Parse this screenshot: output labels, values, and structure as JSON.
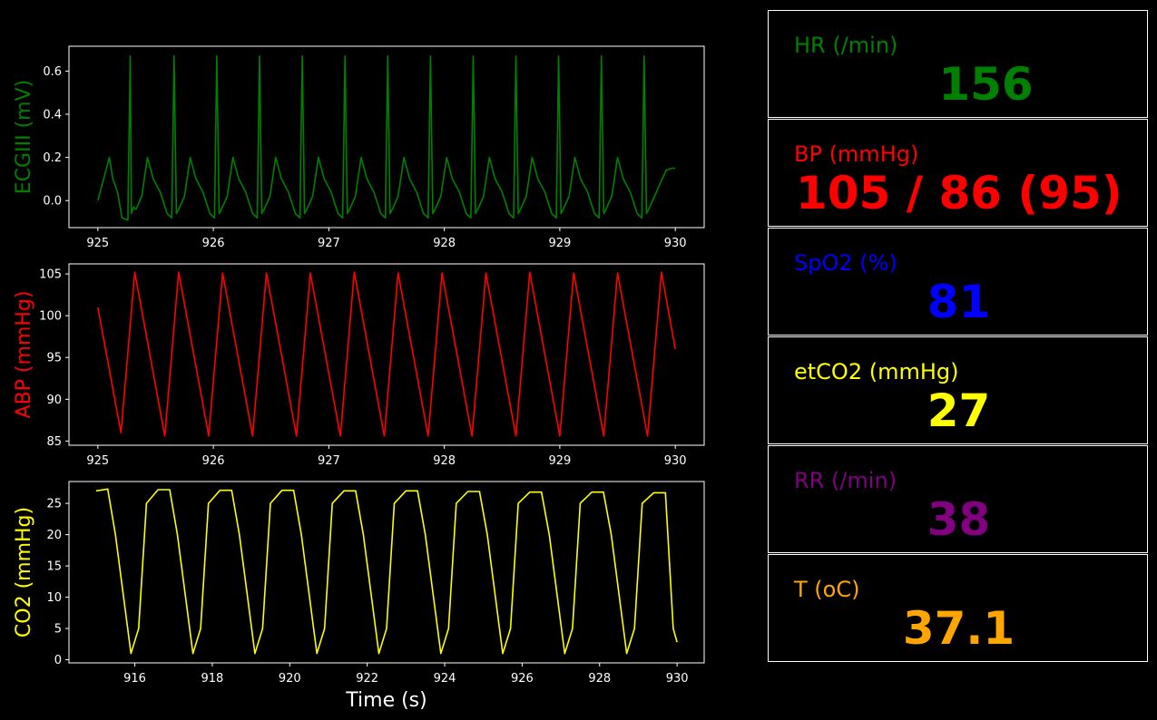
{
  "colors": {
    "background": "#000000",
    "ecg": "#008000",
    "abp": "#ff0000",
    "co2": "#ffff00",
    "spo2": "#0000ff",
    "rr": "#800080",
    "temp": "#ffa500",
    "axis": "#ffffff"
  },
  "vitals": {
    "hr": {
      "label": "HR (/min)",
      "value": "156"
    },
    "bp": {
      "label": "BP  (mmHg)",
      "value": "105 / 86 (95)"
    },
    "spo2": {
      "label": "SpO2 (%)",
      "value": "81"
    },
    "etco2": {
      "label": "etCO2 (mmHg)",
      "value": "27"
    },
    "rr": {
      "label": "RR (/min)",
      "value": "38"
    },
    "temp": {
      "label": "T (oC)",
      "value": "37.1"
    }
  },
  "chart_data": [
    {
      "type": "line",
      "ylabel": "ECGIII (mV)",
      "xlabel": "",
      "xlim": [
        924.75,
        930.25
      ],
      "ylim": [
        -0.125,
        0.715
      ],
      "xticks": [
        "925",
        "926",
        "927",
        "928",
        "929",
        "930"
      ],
      "yticks": [
        "0.0",
        "0.2",
        "0.4",
        "0.6"
      ],
      "grid": false,
      "series": [
        {
          "color": "#008000",
          "x": [
            925.0,
            925.05,
            925.1,
            925.13,
            925.17,
            925.21,
            925.26,
            925.28,
            925.29,
            925.31,
            925.33,
            925.38,
            925.43,
            925.48,
            925.54,
            925.6,
            925.64,
            925.66,
            925.68,
            925.7,
            925.75,
            925.8,
            925.85,
            925.91,
            925.97,
            926.01,
            926.03,
            926.05,
            926.07,
            926.12,
            926.17,
            926.22,
            926.28,
            926.34,
            926.38,
            926.4,
            926.42,
            926.44,
            926.49,
            926.54,
            926.59,
            926.65,
            926.71,
            926.75,
            926.77,
            926.79,
            926.81,
            926.86,
            926.91,
            926.96,
            927.02,
            927.08,
            927.12,
            927.14,
            927.16,
            927.18,
            927.23,
            927.28,
            927.33,
            927.39,
            927.45,
            927.49,
            927.51,
            927.53,
            927.55,
            927.6,
            927.65,
            927.7,
            927.76,
            927.82,
            927.86,
            927.88,
            927.9,
            927.92,
            927.97,
            928.02,
            928.07,
            928.13,
            928.19,
            928.23,
            928.25,
            928.27,
            928.29,
            928.34,
            928.39,
            928.44,
            928.5,
            928.56,
            928.6,
            928.62,
            928.64,
            928.66,
            928.71,
            928.76,
            928.81,
            928.87,
            928.93,
            928.97,
            928.99,
            929.01,
            929.03,
            929.08,
            929.13,
            929.18,
            929.24,
            929.3,
            929.34,
            929.36,
            929.38,
            929.4,
            929.45,
            929.5,
            929.55,
            929.61,
            929.67,
            929.71,
            929.73,
            929.75,
            929.77,
            929.82,
            929.87,
            929.92,
            929.97,
            930.0
          ],
          "y": [
            0.0,
            0.1,
            0.2,
            0.1,
            0.04,
            -0.08,
            -0.09,
            0.67,
            -0.06,
            -0.03,
            -0.04,
            0.02,
            0.2,
            0.1,
            0.04,
            -0.06,
            -0.08,
            0.67,
            -0.06,
            -0.04,
            0.02,
            0.2,
            0.1,
            0.04,
            -0.06,
            -0.08,
            0.67,
            -0.06,
            -0.04,
            0.02,
            0.2,
            0.1,
            0.04,
            -0.06,
            -0.08,
            0.67,
            -0.06,
            -0.04,
            0.02,
            0.2,
            0.1,
            0.04,
            -0.06,
            -0.08,
            0.67,
            -0.06,
            -0.04,
            0.02,
            0.2,
            0.1,
            0.04,
            -0.06,
            -0.08,
            0.67,
            -0.06,
            -0.04,
            0.02,
            0.2,
            0.1,
            0.04,
            -0.06,
            -0.08,
            0.67,
            -0.06,
            -0.04,
            0.02,
            0.2,
            0.1,
            0.04,
            -0.06,
            -0.08,
            0.67,
            -0.06,
            -0.04,
            0.02,
            0.2,
            0.1,
            0.04,
            -0.06,
            -0.08,
            0.67,
            -0.06,
            -0.04,
            0.02,
            0.2,
            0.1,
            0.04,
            -0.06,
            -0.08,
            0.67,
            -0.06,
            -0.04,
            0.02,
            0.2,
            0.1,
            0.04,
            -0.06,
            -0.08,
            0.67,
            -0.06,
            -0.04,
            0.02,
            0.2,
            0.1,
            0.04,
            -0.06,
            -0.08,
            0.67,
            -0.06,
            -0.04,
            0.02,
            0.2,
            0.1,
            0.04,
            -0.06,
            -0.08,
            0.67,
            -0.06,
            -0.04,
            0.02,
            0.08,
            0.14,
            0.15,
            0.15
          ]
        }
      ]
    },
    {
      "type": "line",
      "ylabel": "ABP (mmHg)",
      "xlabel": "",
      "xlim": [
        924.75,
        930.25
      ],
      "ylim": [
        84.5,
        106.2
      ],
      "xticks": [
        "925",
        "926",
        "927",
        "928",
        "929",
        "930"
      ],
      "yticks": [
        "85",
        "90",
        "95",
        "100",
        "105"
      ],
      "grid": false,
      "series": [
        {
          "color": "#ff0000",
          "x": [
            925.0,
            925.2,
            925.32,
            925.58,
            925.7,
            925.96,
            926.08,
            926.34,
            926.46,
            926.72,
            926.84,
            927.1,
            927.22,
            927.48,
            927.6,
            927.86,
            927.98,
            928.24,
            928.36,
            928.62,
            928.74,
            929.0,
            929.12,
            929.38,
            929.5,
            929.76,
            929.88,
            930.0
          ],
          "y": [
            101,
            86,
            105.2,
            85.6,
            105.2,
            85.6,
            105.1,
            85.6,
            105.1,
            85.6,
            105.1,
            85.6,
            105.2,
            85.6,
            105.1,
            85.6,
            105.1,
            85.6,
            105.1,
            85.6,
            105.2,
            85.6,
            105.1,
            85.6,
            105.1,
            85.6,
            105.2,
            96
          ]
        }
      ]
    },
    {
      "type": "line",
      "ylabel": "CO2 (mmHg)",
      "xlabel": "Time (s)",
      "xlim": [
        914.3,
        930.7
      ],
      "ylim": [
        -0.5,
        28.5
      ],
      "xticks": [
        "916",
        "918",
        "920",
        "922",
        "924",
        "926",
        "928",
        "930"
      ],
      "yticks": [
        "0",
        "5",
        "10",
        "15",
        "20",
        "25"
      ],
      "grid": false,
      "series": [
        {
          "color": "#ffff00",
          "x": [
            915.0,
            915.3,
            915.5,
            915.9,
            916.1,
            916.3,
            916.6,
            916.9,
            917.1,
            917.5,
            917.7,
            917.9,
            918.2,
            918.5,
            918.7,
            919.1,
            919.3,
            919.5,
            919.8,
            920.1,
            920.3,
            920.7,
            920.9,
            921.1,
            921.4,
            921.7,
            921.9,
            922.3,
            922.5,
            922.7,
            923.0,
            923.3,
            923.5,
            923.9,
            924.1,
            924.3,
            924.6,
            924.9,
            925.1,
            925.5,
            925.7,
            925.9,
            926.2,
            926.5,
            926.7,
            927.1,
            927.3,
            927.5,
            927.8,
            928.1,
            928.3,
            928.7,
            928.9,
            929.1,
            929.4,
            929.7,
            929.9,
            930.0
          ],
          "y": [
            27,
            27.3,
            20,
            1,
            5,
            25,
            27.2,
            27.2,
            20,
            1,
            5,
            25,
            27.1,
            27.1,
            20,
            1,
            5,
            25,
            27.1,
            27.1,
            20,
            1,
            5,
            25,
            27,
            27,
            20,
            1,
            5,
            25,
            27,
            27,
            20,
            1,
            5,
            25,
            26.9,
            26.9,
            20,
            1,
            5,
            25,
            26.8,
            26.8,
            20,
            1,
            5,
            25,
            26.8,
            26.8,
            20,
            1,
            5,
            25,
            26.7,
            26.7,
            5,
            2.8
          ]
        }
      ]
    }
  ]
}
